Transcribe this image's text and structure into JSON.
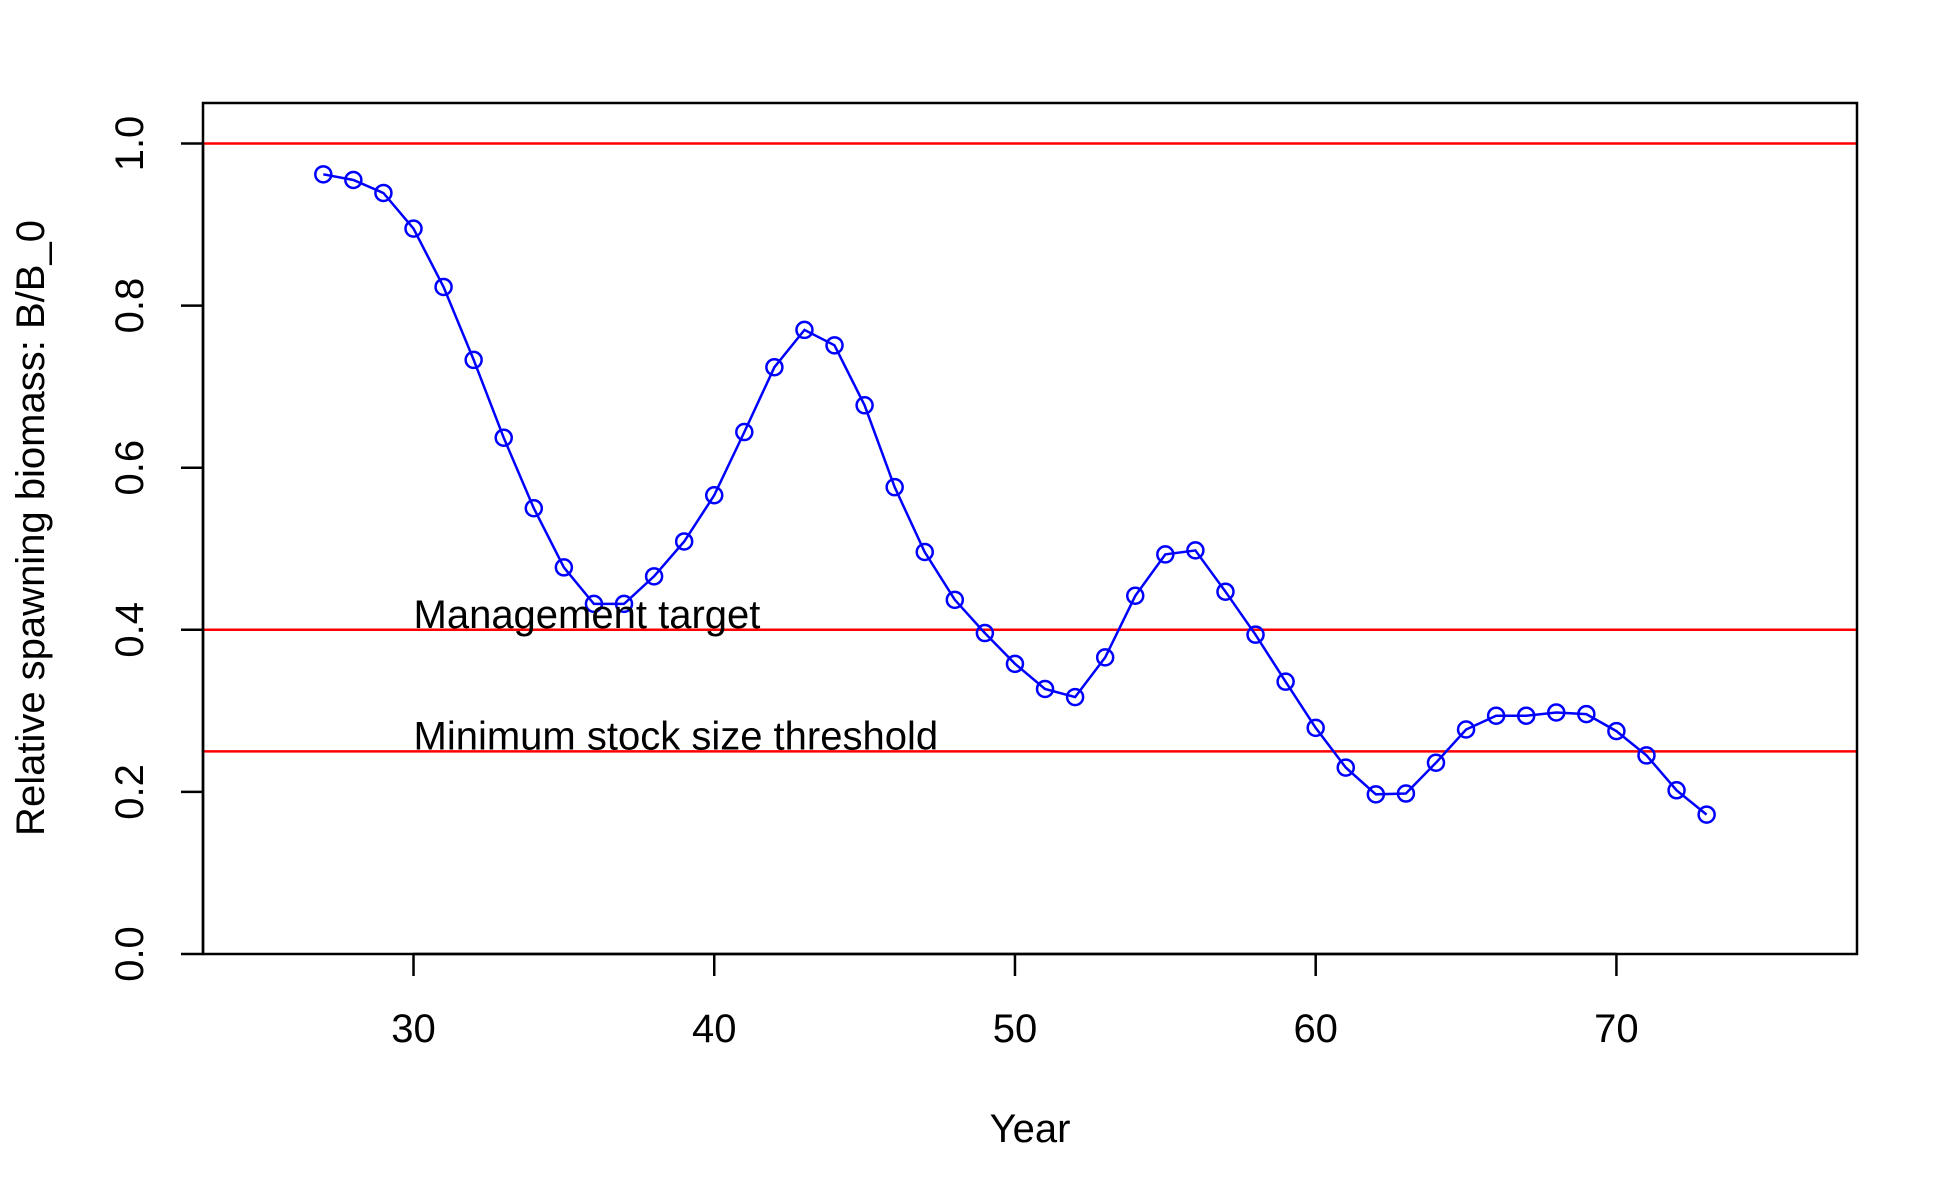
{
  "chart_data": {
    "type": "line",
    "xlabel": "Year",
    "ylabel": "Relative spawning biomass: B/B_0",
    "xlim": [
      23,
      78
    ],
    "ylim": [
      0,
      1.05
    ],
    "x_ticks": [
      30,
      40,
      50,
      60,
      70
    ],
    "y_ticks": [
      0.0,
      0.2,
      0.4,
      0.6,
      0.8,
      1.0
    ],
    "y_tick_labels": [
      "0.0",
      "0.2",
      "0.4",
      "0.6",
      "0.8",
      "1.0"
    ],
    "grid": false,
    "series": [
      {
        "color": "#0000ff",
        "x": [
          27,
          28,
          29,
          30,
          31,
          32,
          33,
          34,
          35,
          36,
          37,
          38,
          39,
          40,
          41,
          42,
          43,
          44,
          45,
          46,
          47,
          48,
          49,
          50,
          51,
          52,
          53,
          54,
          55,
          56,
          57,
          58,
          59,
          60,
          61,
          62,
          63,
          64,
          65,
          66,
          67,
          68,
          69,
          70,
          71,
          72,
          73
        ],
        "y": [
          0.962,
          0.955,
          0.939,
          0.895,
          0.823,
          0.733,
          0.637,
          0.55,
          0.477,
          0.432,
          0.432,
          0.466,
          0.509,
          0.566,
          0.644,
          0.724,
          0.77,
          0.751,
          0.677,
          0.576,
          0.496,
          0.437,
          0.396,
          0.358,
          0.327,
          0.317,
          0.366,
          0.442,
          0.493,
          0.498,
          0.447,
          0.394,
          0.336,
          0.279,
          0.23,
          0.197,
          0.198,
          0.236,
          0.277,
          0.294,
          0.294,
          0.298,
          0.296,
          0.275,
          0.245,
          0.202,
          0.172
        ]
      }
    ],
    "reference_lines": [
      {
        "y": 1.0,
        "color": "#ff0000"
      },
      {
        "y": 0.4,
        "color": "#ff0000"
      },
      {
        "y": 0.25,
        "color": "#ff0000"
      }
    ],
    "annotations": [
      {
        "text": "Management target",
        "x": 30,
        "y": 0.4
      },
      {
        "text": "Minimum stock size threshold",
        "x": 30,
        "y": 0.25
      }
    ]
  }
}
